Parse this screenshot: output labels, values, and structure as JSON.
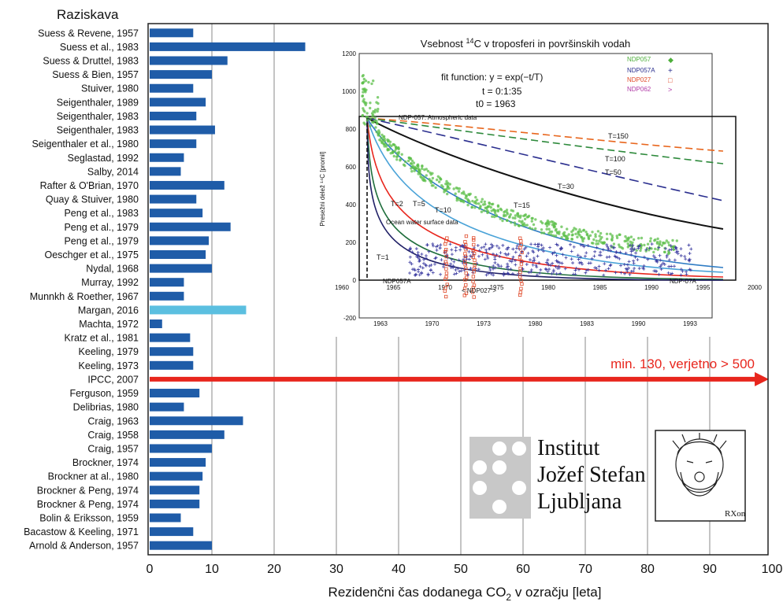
{
  "chart_data": [
    {
      "type": "bar",
      "title": "Raziskava",
      "xlabel_prefix": "Rezidenčni čas dodanega CO",
      "xlabel_sub": "2",
      "xlabel_suffix": " v ozračju [leta]",
      "xlim": [
        0,
        100
      ],
      "xticks": [
        "0",
        "10",
        "20",
        "30",
        "40",
        "50",
        "60",
        "70",
        "80",
        "90",
        "100"
      ],
      "grid": true,
      "bar_color": "#1f5ca8",
      "highlight_color": "#5bbfe0",
      "categories": [
        "Suess & Revene, 1957",
        "Suess et al., 1983",
        "Suess & Druttel, 1983",
        "Suess & Bien, 1957",
        "Stuiver, 1980",
        "Seigenthaler, 1989",
        "Seigenthaler, 1983",
        "Seigenthaler, 1983",
        "Seigenthaler et al., 1980",
        "Seglastad, 1992",
        "Salby, 2014",
        "Rafter & O'Brian, 1970",
        "Quay & Stuiver, 1980",
        "Peng et al., 1983",
        "Peng et al., 1979",
        "Peng et al., 1979",
        "Oeschger et al., 1975",
        "Nydal, 1968",
        "Murray, 1992",
        "Munnkh & Roether, 1967",
        "Margan, 2016",
        "Machta, 1972",
        "Kratz et al., 1981",
        "Keeling, 1979",
        "Keeling, 1973",
        "IPCC, 2007",
        "Ferguson, 1959",
        "Delibrias, 1980",
        "Craig, 1963",
        "Craig, 1958",
        "Craig, 1957",
        "Brockner, 1974",
        "Brockner at al., 1980",
        "Brockner & Peng, 1974",
        "Brockner & Peng, 1974",
        "Bolin & Eriksson, 1959",
        "Bacastow & Keeling, 1971",
        "Arnold &  Anderson, 1957"
      ],
      "values": [
        7,
        25,
        12.5,
        10,
        7,
        9,
        7.5,
        10.5,
        7.5,
        5.5,
        5,
        12,
        7.5,
        8.5,
        13,
        9.5,
        9,
        10,
        5.5,
        5.5,
        15.5,
        2,
        6.5,
        7,
        7,
        null,
        8,
        5.5,
        15,
        12,
        10,
        9,
        8.5,
        8,
        8,
        5,
        7,
        10
      ],
      "highlight_category": "Margan, 2016",
      "arrow_category": "IPCC, 2007",
      "arrow_from": 0,
      "arrow_to": 99.5,
      "arrow_color": "#e8261d",
      "arrow_label": "min. 130, verjetno > 500"
    },
    {
      "type": "scatter",
      "title_prefix": "Vsebnost ",
      "title_sup": "14",
      "title_suffix": "C v troposferi in površinskih vodah",
      "ylabel": "Presežni delež ¹⁴C [promil]",
      "yticks": [
        "-200",
        "0",
        "200",
        "400",
        "600",
        "800",
        "1000",
        "1200"
      ],
      "xticks_inner": [
        "1960",
        "1965",
        "1970",
        "1975",
        "1980",
        "1985",
        "1990",
        "1995",
        "2000"
      ],
      "xticks_outer": [
        "1963",
        "1970",
        "1973",
        "1980",
        "1983",
        "1990",
        "1993"
      ],
      "fit_text": [
        "fit function:   y = exp(−t/T)",
        "t = 0:1:35",
        "t0 = 1963"
      ],
      "legend": [
        {
          "label": "NDP057",
          "marker": "◆",
          "color": "#4cae3a"
        },
        {
          "label": "NDP057A",
          "marker": "+",
          "color": "#2b2f8f"
        },
        {
          "label": "NDP027",
          "marker": "□",
          "color": "#e04a2a"
        },
        {
          "label": "NDP062",
          "marker": ">",
          "color": "#b03aa6"
        }
      ],
      "curve_labels": [
        "T=1",
        "T=2",
        "T=5",
        "T=10",
        "T=15",
        "T=30",
        "T=50",
        "T=100",
        "T=150"
      ],
      "annotations": [
        "NDP-057: Atmospheric data",
        "Ocean water surface data",
        "< NDP027 >",
        "NDP057A",
        "NDP-0?A"
      ]
    }
  ],
  "logos": {
    "institute_lines": [
      "Institut",
      "Jožef Stefan",
      "Ljubljana"
    ],
    "rxon_label": "RXon"
  }
}
